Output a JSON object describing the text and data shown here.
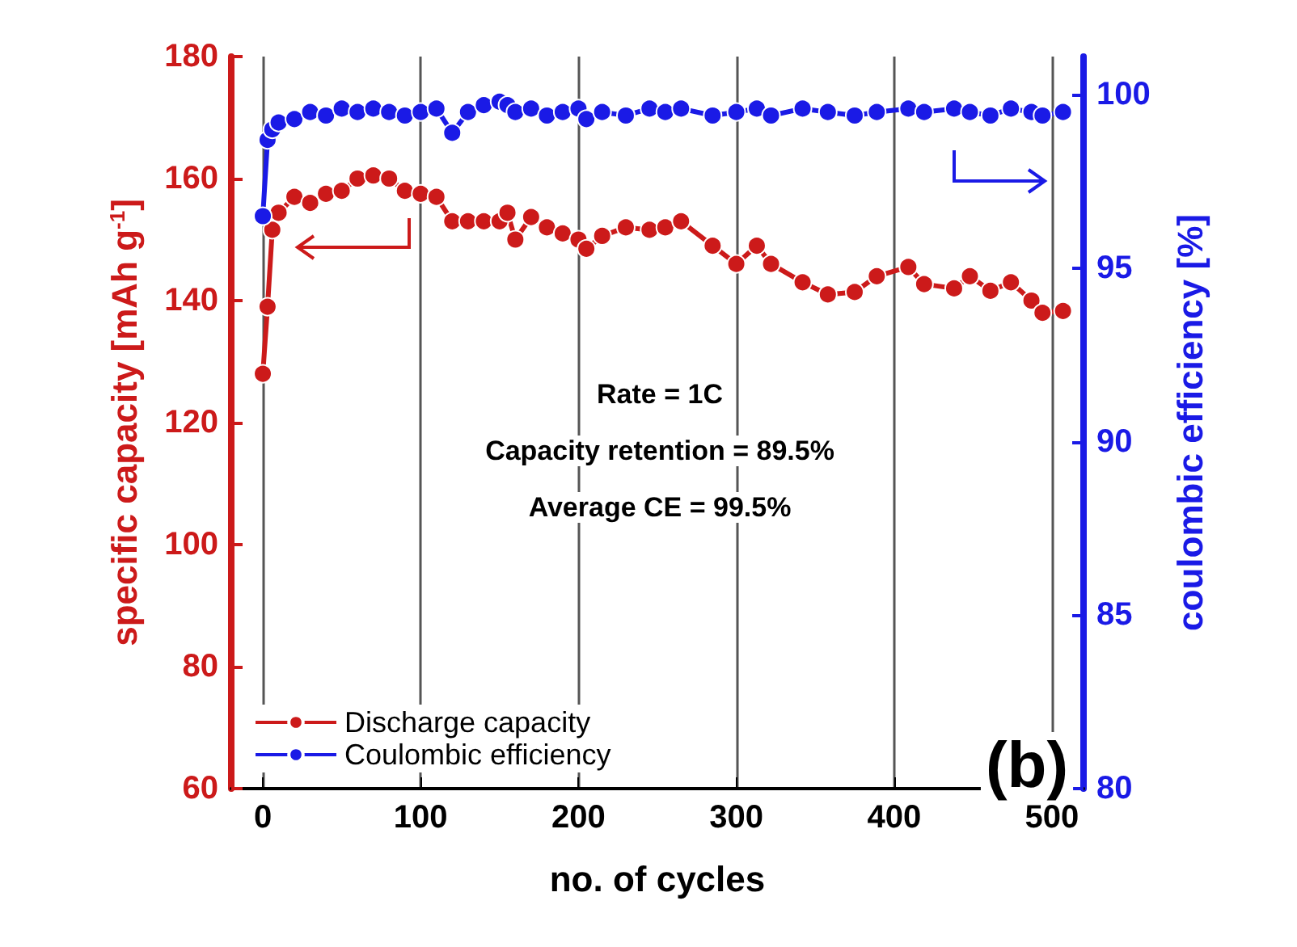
{
  "chart_data": {
    "type": "line",
    "xlabel": "no. of cycles",
    "ylabel": "specific capacity [mAh g$^{-1}$]",
    "y2label": "coulombic efficiency [%]",
    "x": [
      0,
      3,
      6,
      10,
      20,
      30,
      40,
      50,
      60,
      70,
      80,
      90,
      100,
      110,
      120,
      130,
      140,
      150,
      155,
      160,
      170,
      180,
      190,
      200,
      205,
      215,
      230,
      245,
      255,
      265,
      285,
      300,
      313,
      322,
      342,
      358,
      375,
      389,
      409,
      419,
      438,
      448,
      461,
      474,
      487,
      494,
      507
    ],
    "series": [
      {
        "name": "Discharge capacity",
        "color": "#cc1a1a",
        "values": [
          128,
          139,
          151.6,
          154.4,
          157,
          156,
          157.5,
          158,
          160,
          160.5,
          160,
          158,
          157.5,
          157,
          153,
          153,
          153,
          153,
          154.4,
          150,
          153.7,
          152,
          151,
          150,
          148.5,
          150.6,
          152,
          151.6,
          152,
          153,
          149,
          146,
          149,
          146,
          143,
          141,
          141.4,
          144,
          145.5,
          142.7,
          142,
          144,
          141.6,
          143,
          140,
          138,
          138.3
        ]
      },
      {
        "name": "Coulombic efficiency",
        "color": "#1a1ae6",
        "axis": "y2",
        "values": [
          96.5,
          98.7,
          99.0,
          99.2,
          99.3,
          99.5,
          99.4,
          99.6,
          99.5,
          99.6,
          99.5,
          99.4,
          99.5,
          99.6,
          98.9,
          99.5,
          99.7,
          99.8,
          99.7,
          99.5,
          99.6,
          99.4,
          99.5,
          99.6,
          99.3,
          99.5,
          99.4,
          99.6,
          99.5,
          99.6,
          99.4,
          99.5,
          99.6,
          99.4,
          99.6,
          99.5,
          99.4,
          99.5,
          99.6,
          99.5,
          99.6,
          99.5,
          99.4,
          99.6,
          99.5,
          99.4,
          99.5
        ]
      }
    ],
    "xlim": [
      -20,
      520
    ],
    "xticks": [
      0,
      100,
      200,
      300,
      400,
      500
    ],
    "ylim": [
      60,
      180
    ],
    "yticks": [
      60,
      80,
      100,
      120,
      140,
      160,
      180
    ],
    "y2lim": [
      80,
      101.1
    ],
    "y2ticks": [
      80,
      85,
      90,
      95,
      100
    ],
    "annotations": [
      "Rate = 1C",
      "Capacity retention = 89.5%",
      "Average CE = 99.5%",
      "(b)"
    ],
    "grid": "x",
    "legend": "bottom left",
    "marker": "circle",
    "line_style": "solid"
  }
}
